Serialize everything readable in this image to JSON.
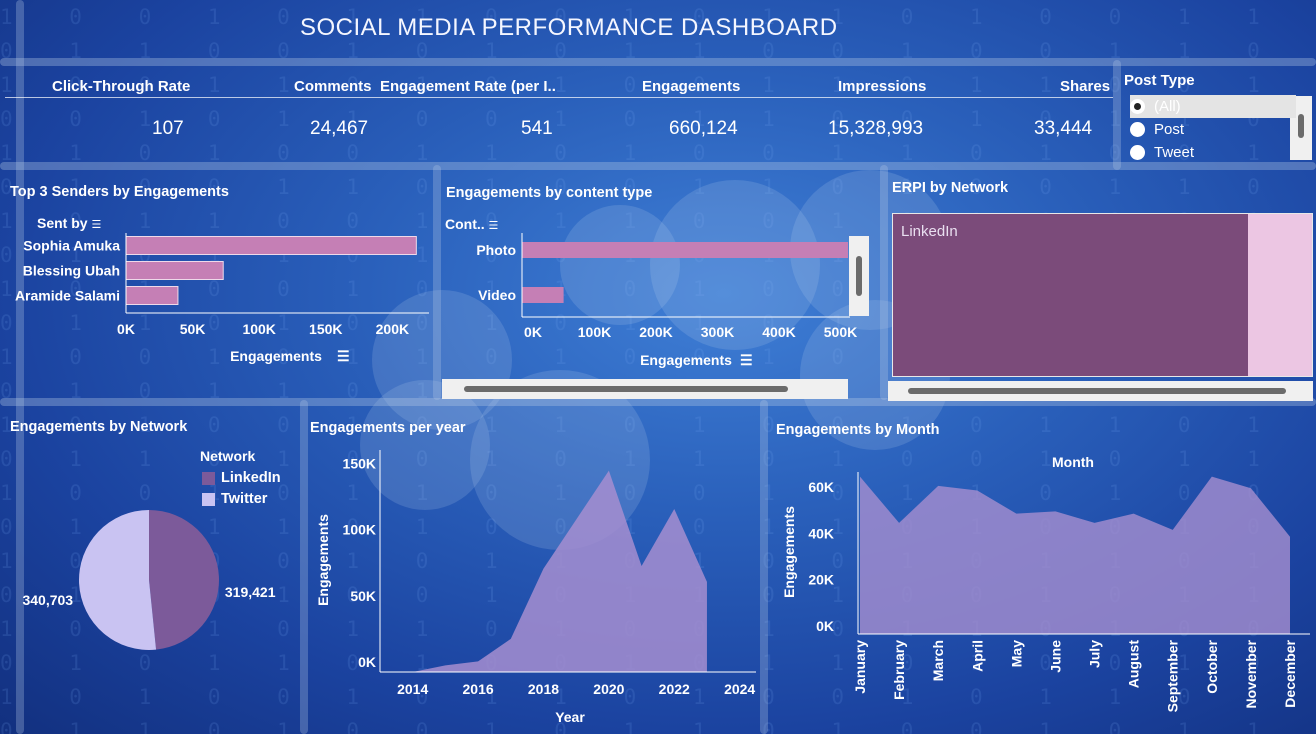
{
  "title": "SOCIAL MEDIA PERFORMANCE DASHBOARD",
  "kpis": [
    {
      "label": "Click-Through Rate",
      "value": "107"
    },
    {
      "label": "Comments",
      "value": "24,467"
    },
    {
      "label": "Engagement Rate (per I..",
      "value": "541"
    },
    {
      "label": "Engagements",
      "value": "660,124"
    },
    {
      "label": "Impressions",
      "value": "15,328,993"
    },
    {
      "label": "Shares",
      "value": "33,444"
    }
  ],
  "post_type_filter": {
    "title": "Post Type",
    "options": [
      "(All)",
      "Post",
      "Tweet"
    ],
    "selected": "(All)"
  },
  "sections": {
    "top_senders": "Top 3 Senders by Engagements",
    "content_type": "Engagements by content type",
    "erpi": "ERPI by Network",
    "by_network": "Engagements by Network",
    "per_year": "Engagements per year",
    "by_month": "Engagements by Month"
  },
  "colors": {
    "bar": "#c57fb5",
    "linkedin": "#7c5a9a",
    "twitter": "#c9c3f2",
    "area": "#a68ed0",
    "treemap_main": "#7b4b7a",
    "treemap_side": "#ecc6e3"
  },
  "chart_data": [
    {
      "type": "bar",
      "orientation": "horizontal",
      "title": "Top 3 Senders by Engagements",
      "dimension_label": "Sent by",
      "xlabel": "Engagements",
      "categories": [
        "Sophia Amuka",
        "Blessing Ubah",
        "Aramide Salami"
      ],
      "values": [
        218000,
        73000,
        39000
      ],
      "xlim": [
        0,
        220000
      ],
      "xticks": [
        "0K",
        "50K",
        "100K",
        "150K",
        "200K"
      ]
    },
    {
      "type": "bar",
      "orientation": "horizontal",
      "title": "Engagements by content type",
      "dimension_label": "Cont..",
      "xlabel": "Engagements",
      "categories": [
        "Photo",
        "Video"
      ],
      "values": [
        525000,
        67000
      ],
      "xlim": [
        0,
        525000
      ],
      "xticks": [
        "0K",
        "100K",
        "200K",
        "300K",
        "400K",
        "500K"
      ]
    },
    {
      "type": "treemap",
      "title": "ERPI by Network",
      "labels": [
        "LinkedIn"
      ],
      "values": [
        100
      ]
    },
    {
      "type": "pie",
      "title": "Engagements by Network",
      "legend_title": "Network",
      "labels": [
        "LinkedIn",
        "Twitter"
      ],
      "values": [
        319421,
        340703
      ],
      "value_labels": [
        "319,421",
        "340,703"
      ]
    },
    {
      "type": "area",
      "title": "Engagements per year",
      "xlabel": "Year",
      "ylabel": "Engagements",
      "x": [
        2014,
        2015,
        2016,
        2017,
        2018,
        2019,
        2020,
        2021,
        2022,
        2023
      ],
      "values": [
        0,
        5000,
        8000,
        25000,
        78000,
        115000,
        152000,
        80000,
        123000,
        68000
      ],
      "xlim": [
        2013,
        2024.5
      ],
      "ylim": [
        0,
        160000
      ],
      "xticks": [
        "2014",
        "2016",
        "2018",
        "2020",
        "2022",
        "2024"
      ],
      "yticks": [
        "0K",
        "50K",
        "100K",
        "150K"
      ]
    },
    {
      "type": "area",
      "title": "Engagements by Month",
      "header": "Month",
      "ylabel": "Engagements",
      "categories": [
        "January",
        "February",
        "March",
        "April",
        "May",
        "June",
        "July",
        "August",
        "September",
        "October",
        "November",
        "December"
      ],
      "values": [
        68000,
        48000,
        64000,
        62000,
        52000,
        53000,
        48000,
        52000,
        45000,
        68000,
        63000,
        42000
      ],
      "ylim": [
        0,
        70000
      ],
      "yticks": [
        "0K",
        "20K",
        "40K",
        "60K"
      ]
    }
  ]
}
